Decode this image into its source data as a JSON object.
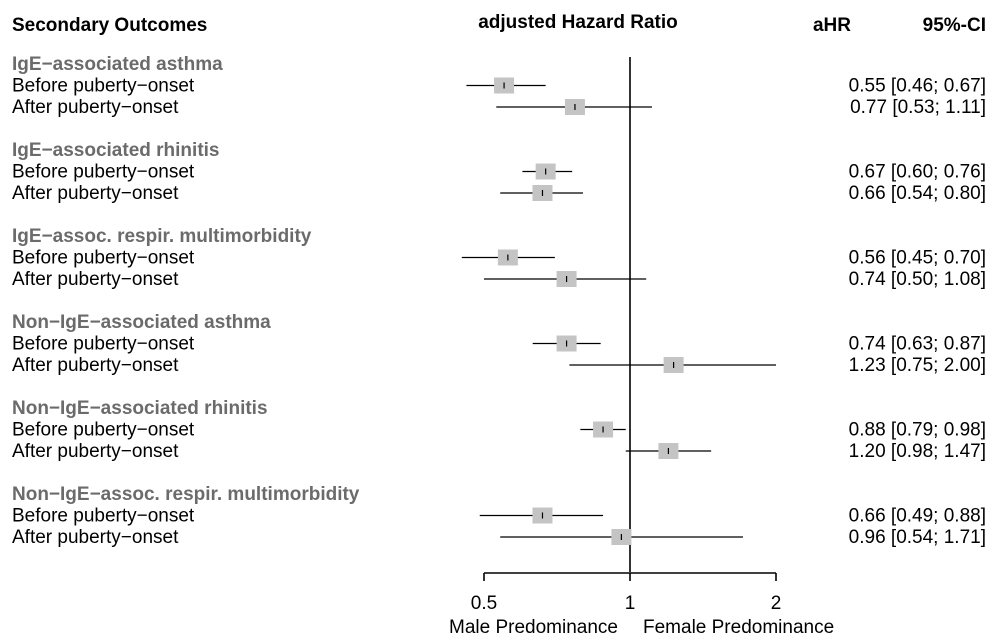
{
  "headers": {
    "outcomes": "Secondary Outcomes",
    "plot": "adjusted Hazard Ratio",
    "ahr": "aHR",
    "ci": "95%-CI"
  },
  "colors": {
    "group_label": "#6b6b6b",
    "box_fill": "#c4c4c4",
    "line": "#000000"
  },
  "chart_data": {
    "type": "forest",
    "x_scale": "log",
    "xlim": [
      0.5,
      2
    ],
    "reference_line": 1,
    "x_ticks": [
      {
        "value": 0.5,
        "label": "0.5"
      },
      {
        "value": 1,
        "label": "1"
      },
      {
        "value": 2,
        "label": "2"
      }
    ],
    "xlabel_left": "Male Predominance",
    "xlabel_right": "Female Predominance",
    "groups": [
      {
        "label": "IgE−associated asthma",
        "rows": [
          {
            "label": "Before puberty−onset",
            "hr": 0.55,
            "lo": 0.46,
            "hi": 0.67,
            "text": "0.55 [0.46; 0.67]"
          },
          {
            "label": "After puberty−onset",
            "hr": 0.77,
            "lo": 0.53,
            "hi": 1.11,
            "text": "0.77 [0.53; 1.11]"
          }
        ]
      },
      {
        "label": "IgE−associated rhinitis",
        "rows": [
          {
            "label": "Before puberty−onset",
            "hr": 0.67,
            "lo": 0.6,
            "hi": 0.76,
            "text": "0.67 [0.60; 0.76]"
          },
          {
            "label": "After puberty−onset",
            "hr": 0.66,
            "lo": 0.54,
            "hi": 0.8,
            "text": "0.66 [0.54; 0.80]"
          }
        ]
      },
      {
        "label": "IgE−assoc. respir. multimorbidity",
        "rows": [
          {
            "label": "Before puberty−onset",
            "hr": 0.56,
            "lo": 0.45,
            "hi": 0.7,
            "text": "0.56 [0.45; 0.70]"
          },
          {
            "label": "After puberty−onset",
            "hr": 0.74,
            "lo": 0.5,
            "hi": 1.08,
            "text": "0.74 [0.50; 1.08]"
          }
        ]
      },
      {
        "label": "Non−IgE−associated asthma",
        "rows": [
          {
            "label": "Before puberty−onset",
            "hr": 0.74,
            "lo": 0.63,
            "hi": 0.87,
            "text": "0.74 [0.63; 0.87]"
          },
          {
            "label": "After puberty−onset",
            "hr": 1.23,
            "lo": 0.75,
            "hi": 2.0,
            "text": "1.23 [0.75; 2.00]"
          }
        ]
      },
      {
        "label": "Non−IgE−associated rhinitis",
        "rows": [
          {
            "label": "Before puberty−onset",
            "hr": 0.88,
            "lo": 0.79,
            "hi": 0.98,
            "text": "0.88 [0.79; 0.98]"
          },
          {
            "label": "After puberty−onset",
            "hr": 1.2,
            "lo": 0.98,
            "hi": 1.47,
            "text": "1.20 [0.98; 1.47]"
          }
        ]
      },
      {
        "label": "Non−IgE−assoc. respir. multimorbidity",
        "rows": [
          {
            "label": "Before puberty−onset",
            "hr": 0.66,
            "lo": 0.49,
            "hi": 0.88,
            "text": "0.66 [0.49; 0.88]"
          },
          {
            "label": "After puberty−onset",
            "hr": 0.96,
            "lo": 0.54,
            "hi": 1.71,
            "text": "0.96 [0.54; 1.71]"
          }
        ]
      }
    ]
  }
}
